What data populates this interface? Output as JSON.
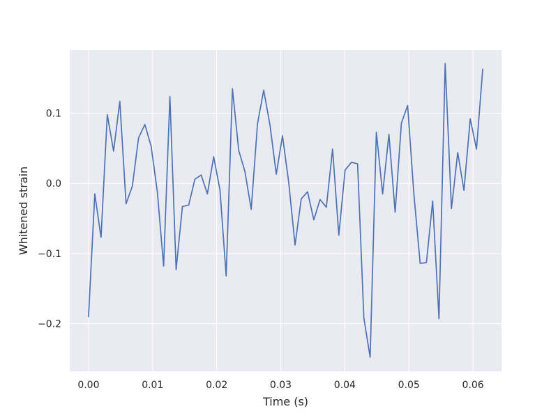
{
  "chart_data": {
    "type": "line",
    "title": "",
    "xlabel": "Time (s)",
    "ylabel": "Whitened strain",
    "xlim": [
      -0.00293,
      0.06445
    ],
    "ylim": [
      -0.268,
      0.19
    ],
    "xticks": [
      0.0,
      0.01,
      0.02,
      0.03,
      0.04,
      0.05,
      0.06
    ],
    "xtick_labels": [
      "0.00",
      "0.01",
      "0.02",
      "0.03",
      "0.04",
      "0.05",
      "0.06"
    ],
    "yticks": [
      -0.2,
      -0.1,
      0.0,
      0.1
    ],
    "ytick_labels": [
      "−0.2",
      "−0.1",
      "0.0",
      "0.1"
    ],
    "grid": true,
    "legend": "none",
    "colors": {
      "line": "#4c72b0",
      "plot_bg": "#eaeaf2",
      "grid": "#ffffff",
      "page_bg": "#ffffff"
    },
    "series": [
      {
        "x": [
          0.0,
          0.00098,
          0.00195,
          0.00293,
          0.00391,
          0.00488,
          0.00586,
          0.00684,
          0.00781,
          0.00879,
          0.00977,
          0.01074,
          0.01172,
          0.0127,
          0.01367,
          0.01465,
          0.01563,
          0.0166,
          0.01758,
          0.01855,
          0.01953,
          0.02051,
          0.02148,
          0.02246,
          0.02344,
          0.02441,
          0.02539,
          0.02637,
          0.02734,
          0.02832,
          0.0293,
          0.03027,
          0.03125,
          0.03223,
          0.0332,
          0.03418,
          0.03516,
          0.03613,
          0.03711,
          0.03809,
          0.03906,
          0.04004,
          0.04102,
          0.04199,
          0.04297,
          0.04395,
          0.04492,
          0.0459,
          0.04688,
          0.04785,
          0.04883,
          0.0498,
          0.05078,
          0.05176,
          0.05273,
          0.05371,
          0.05469,
          0.05566,
          0.05664,
          0.05762,
          0.05859,
          0.05957,
          0.06055,
          0.06152
        ],
        "y": [
          -0.19,
          -0.015,
          -0.077,
          0.098,
          0.046,
          0.117,
          -0.029,
          -0.004,
          0.065,
          0.084,
          0.053,
          -0.012,
          -0.118,
          0.124,
          -0.123,
          -0.033,
          -0.031,
          0.006,
          0.012,
          -0.015,
          0.038,
          -0.009,
          -0.132,
          0.135,
          0.047,
          0.017,
          -0.037,
          0.085,
          0.133,
          0.083,
          0.013,
          0.068,
          0.001,
          -0.088,
          -0.022,
          -0.012,
          -0.052,
          -0.023,
          -0.034,
          0.049,
          -0.074,
          0.019,
          0.03,
          0.028,
          -0.192,
          -0.248,
          0.073,
          -0.015,
          0.07,
          -0.041,
          0.086,
          0.111,
          -0.016,
          -0.114,
          -0.113,
          -0.025,
          -0.193,
          0.171,
          -0.036,
          0.044,
          -0.01,
          0.092,
          0.049,
          0.163
        ]
      }
    ]
  }
}
